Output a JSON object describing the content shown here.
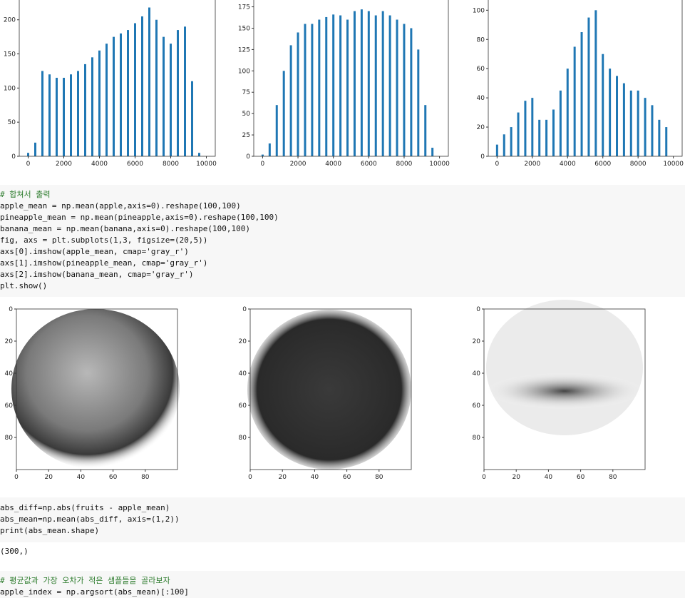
{
  "chart_data": [
    {
      "type": "bar",
      "x": [
        0,
        400,
        800,
        1200,
        1600,
        2000,
        2400,
        2800,
        3200,
        3600,
        4000,
        4400,
        4800,
        5200,
        5600,
        6000,
        6400,
        6800,
        7200,
        7600,
        8000,
        8400,
        8800,
        9200,
        9600
      ],
      "values": [
        5,
        20,
        125,
        120,
        115,
        115,
        120,
        125,
        135,
        145,
        155,
        165,
        175,
        180,
        185,
        195,
        205,
        218,
        200,
        175,
        165,
        185,
        190,
        110,
        5
      ],
      "color": "#1f77b4",
      "xlim": [
        -500,
        10500
      ],
      "ylim": [
        0,
        229
      ],
      "xticks": [
        0,
        2000,
        4000,
        6000,
        8000,
        10000
      ],
      "yticks": [
        0,
        50,
        100,
        150,
        200
      ]
    },
    {
      "type": "bar",
      "x": [
        0,
        400,
        800,
        1200,
        1600,
        2000,
        2400,
        2800,
        3200,
        3600,
        4000,
        4400,
        4800,
        5200,
        5600,
        6000,
        6400,
        6800,
        7200,
        7600,
        8000,
        8400,
        8800,
        9200,
        9600
      ],
      "values": [
        2,
        15,
        60,
        100,
        130,
        145,
        155,
        155,
        160,
        163,
        166,
        165,
        160,
        170,
        172,
        170,
        165,
        170,
        165,
        160,
        155,
        150,
        125,
        60,
        10
      ],
      "color": "#1f77b4",
      "xlim": [
        -500,
        10500
      ],
      "ylim": [
        0,
        183
      ],
      "xticks": [
        0,
        2000,
        4000,
        6000,
        8000,
        10000
      ],
      "yticks": [
        0,
        25,
        50,
        75,
        100,
        125,
        150,
        175
      ]
    },
    {
      "type": "bar",
      "x": [
        0,
        400,
        800,
        1200,
        1600,
        2000,
        2400,
        2800,
        3200,
        3600,
        4000,
        4400,
        4800,
        5200,
        5600,
        6000,
        6400,
        6800,
        7200,
        7600,
        8000,
        8400,
        8800,
        9200,
        9600
      ],
      "values": [
        8,
        15,
        20,
        30,
        38,
        40,
        25,
        25,
        32,
        45,
        60,
        75,
        85,
        95,
        100,
        70,
        60,
        55,
        50,
        45,
        45,
        40,
        35,
        25,
        20
      ],
      "color": "#1f77b4",
      "xlim": [
        -500,
        10500
      ],
      "ylim": [
        0,
        107
      ],
      "xticks": [
        0,
        2000,
        4000,
        6000,
        8000,
        10000
      ],
      "yticks": [
        0,
        20,
        40,
        60,
        80,
        100
      ]
    }
  ],
  "images": [
    {
      "xlim": [
        0,
        100
      ],
      "ylim": [
        0,
        100
      ],
      "xticks": [
        0,
        20,
        40,
        60,
        80
      ],
      "yticks": [
        0,
        20,
        40,
        60,
        80
      ]
    },
    {
      "xlim": [
        0,
        100
      ],
      "ylim": [
        0,
        100
      ],
      "xticks": [
        0,
        20,
        40,
        60,
        80
      ],
      "yticks": [
        0,
        20,
        40,
        60,
        80
      ]
    },
    {
      "xlim": [
        0,
        100
      ],
      "ylim": [
        0,
        100
      ],
      "xticks": [
        0,
        20,
        40,
        60,
        80
      ],
      "yticks": [
        0,
        20,
        40,
        60,
        80
      ]
    }
  ],
  "cells": [
    {
      "lines": [
        "# 합쳐서 출력",
        "apple_mean = np.mean(apple,axis=0).reshape(100,100)",
        "pineapple_mean = np.mean(pineapple,axis=0).reshape(100,100)",
        "banana_mean = np.mean(banana,axis=0).reshape(100,100)",
        "fig, axs = plt.subplots(1,3, figsize=(20,5))",
        "axs[0].imshow(apple_mean, cmap='gray_r')",
        "axs[1].imshow(pineapple_mean, cmap='gray_r')",
        "axs[2].imshow(banana_mean, cmap='gray_r')",
        "plt.show()"
      ]
    },
    {
      "lines": [
        "abs_diff=np.abs(fruits - apple_mean)",
        "abs_mean=np.mean(abs_diff, axis=(1,2))",
        "print(abs_mean.shape)"
      ]
    },
    {
      "lines": [
        "# 평균값과 가장 오차가 적은 샘플들을 골라보자",
        "apple_index = np.argsort(abs_mean)[:100]"
      ]
    }
  ],
  "output": "(300,)"
}
